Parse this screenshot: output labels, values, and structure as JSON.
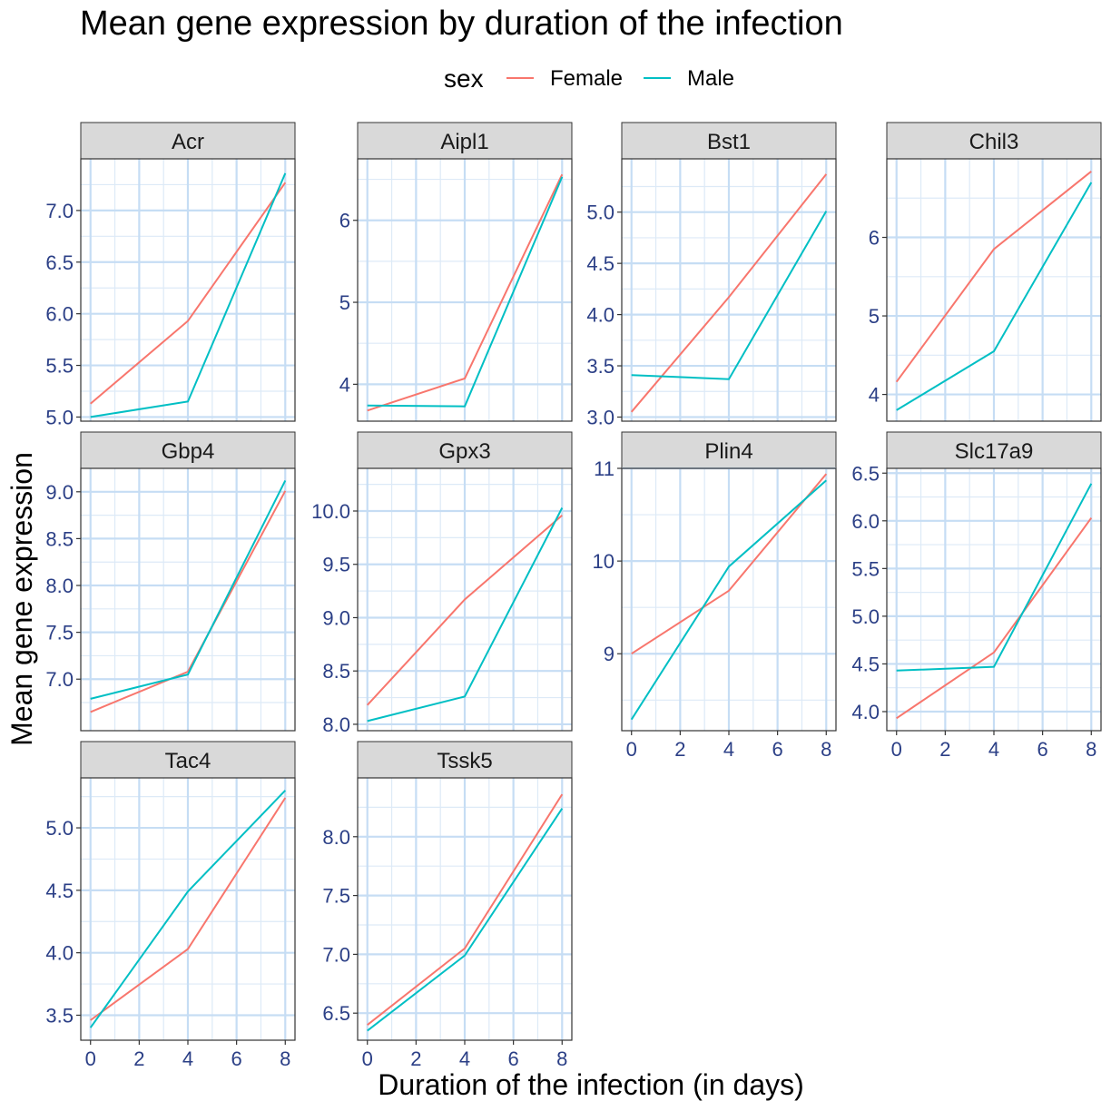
{
  "chart_data": {
    "type": "line",
    "title": "Mean gene expression by duration of the infection",
    "xlabel": "Duration of the infection (in days)",
    "ylabel": "Mean gene expression",
    "legend": {
      "title": "sex",
      "position": "top",
      "entries": [
        {
          "name": "Female",
          "color": "#f8766d"
        },
        {
          "name": "Male",
          "color": "#00bfc4"
        }
      ]
    },
    "grid": true,
    "x": [
      0,
      4,
      8
    ],
    "xlim": [
      -0.4,
      8.4
    ],
    "xticks": [
      0,
      2,
      4,
      6,
      8
    ],
    "panels": [
      {
        "gene": "Acr",
        "ylim": [
          4.96,
          7.5
        ],
        "yticks": [
          5.0,
          5.5,
          6.0,
          6.5,
          7.0
        ],
        "ytick_labels": [
          "5.0",
          "5.5",
          "6.0",
          "6.5",
          "7.0"
        ],
        "series": [
          {
            "name": "Female",
            "values": [
              5.13,
              5.93,
              7.27
            ]
          },
          {
            "name": "Male",
            "values": [
              5.0,
              5.15,
              7.36
            ]
          }
        ]
      },
      {
        "gene": "Aipl1",
        "ylim": [
          3.55,
          6.75
        ],
        "yticks": [
          4,
          5,
          6
        ],
        "ytick_labels": [
          "4",
          "5",
          "6"
        ],
        "series": [
          {
            "name": "Female",
            "values": [
              3.68,
              4.07,
              6.56
            ]
          },
          {
            "name": "Male",
            "values": [
              3.74,
              3.73,
              6.53
            ]
          }
        ]
      },
      {
        "gene": "Bst1",
        "ylim": [
          2.96,
          5.52
        ],
        "yticks": [
          3.0,
          3.5,
          4.0,
          4.5,
          5.0
        ],
        "ytick_labels": [
          "3.0",
          "3.5",
          "4.0",
          "4.5",
          "5.0"
        ],
        "series": [
          {
            "name": "Female",
            "values": [
              3.05,
              4.17,
              5.37
            ]
          },
          {
            "name": "Male",
            "values": [
              3.41,
              3.37,
              5.01
            ]
          }
        ]
      },
      {
        "gene": "Chil3",
        "ylim": [
          3.66,
          7.0
        ],
        "yticks": [
          4,
          5,
          6
        ],
        "ytick_labels": [
          "4",
          "5",
          "6"
        ],
        "series": [
          {
            "name": "Female",
            "values": [
              4.16,
              5.85,
              6.84
            ]
          },
          {
            "name": "Male",
            "values": [
              3.8,
              4.55,
              6.7
            ]
          }
        ]
      },
      {
        "gene": "Gbp4",
        "ylim": [
          6.45,
          9.25
        ],
        "yticks": [
          7.0,
          7.5,
          8.0,
          8.5,
          9.0
        ],
        "ytick_labels": [
          "7.0",
          "7.5",
          "8.0",
          "8.5",
          "9.0"
        ],
        "series": [
          {
            "name": "Female",
            "values": [
              6.65,
              7.08,
              9.01
            ]
          },
          {
            "name": "Male",
            "values": [
              6.79,
              7.05,
              9.12
            ]
          }
        ]
      },
      {
        "gene": "Gpx3",
        "ylim": [
          7.94,
          10.4
        ],
        "yticks": [
          8.0,
          8.5,
          9.0,
          9.5,
          10.0
        ],
        "ytick_labels": [
          "8.0",
          "8.5",
          "9.0",
          "9.5",
          "10.0"
        ],
        "series": [
          {
            "name": "Female",
            "values": [
              8.18,
              9.17,
              9.96
            ]
          },
          {
            "name": "Male",
            "values": [
              8.03,
              8.26,
              10.03
            ]
          }
        ]
      },
      {
        "gene": "Plin4",
        "ylim": [
          8.17,
          11.0
        ],
        "yticks": [
          9,
          10,
          11
        ],
        "ytick_labels": [
          "9",
          "10",
          "11"
        ],
        "series": [
          {
            "name": "Female",
            "values": [
              9.0,
              9.68,
              10.94
            ]
          },
          {
            "name": "Male",
            "values": [
              8.29,
              9.94,
              10.87
            ]
          }
        ]
      },
      {
        "gene": "Slc17a9",
        "ylim": [
          3.8,
          6.55
        ],
        "yticks": [
          4.0,
          4.5,
          5.0,
          5.5,
          6.0,
          6.5
        ],
        "ytick_labels": [
          "4.0",
          "4.5",
          "5.0",
          "5.5",
          "6.0",
          "6.5"
        ],
        "series": [
          {
            "name": "Female",
            "values": [
              3.93,
              4.62,
              6.03
            ]
          },
          {
            "name": "Male",
            "values": [
              4.43,
              4.47,
              6.39
            ]
          }
        ]
      },
      {
        "gene": "Tac4",
        "ylim": [
          3.3,
          5.4
        ],
        "yticks": [
          3.5,
          4.0,
          4.5,
          5.0
        ],
        "ytick_labels": [
          "3.5",
          "4.0",
          "4.5",
          "5.0"
        ],
        "series": [
          {
            "name": "Female",
            "values": [
              3.46,
              4.03,
              5.24
            ]
          },
          {
            "name": "Male",
            "values": [
              3.4,
              4.49,
              5.3
            ]
          }
        ]
      },
      {
        "gene": "Tssk5",
        "ylim": [
          6.27,
          8.5
        ],
        "yticks": [
          6.5,
          7.0,
          7.5,
          8.0
        ],
        "ytick_labels": [
          "6.5",
          "7.0",
          "7.5",
          "8.0"
        ],
        "series": [
          {
            "name": "Female",
            "values": [
              6.4,
              7.05,
              8.36
            ]
          },
          {
            "name": "Male",
            "values": [
              6.35,
              6.99,
              8.24
            ]
          }
        ]
      }
    ]
  }
}
